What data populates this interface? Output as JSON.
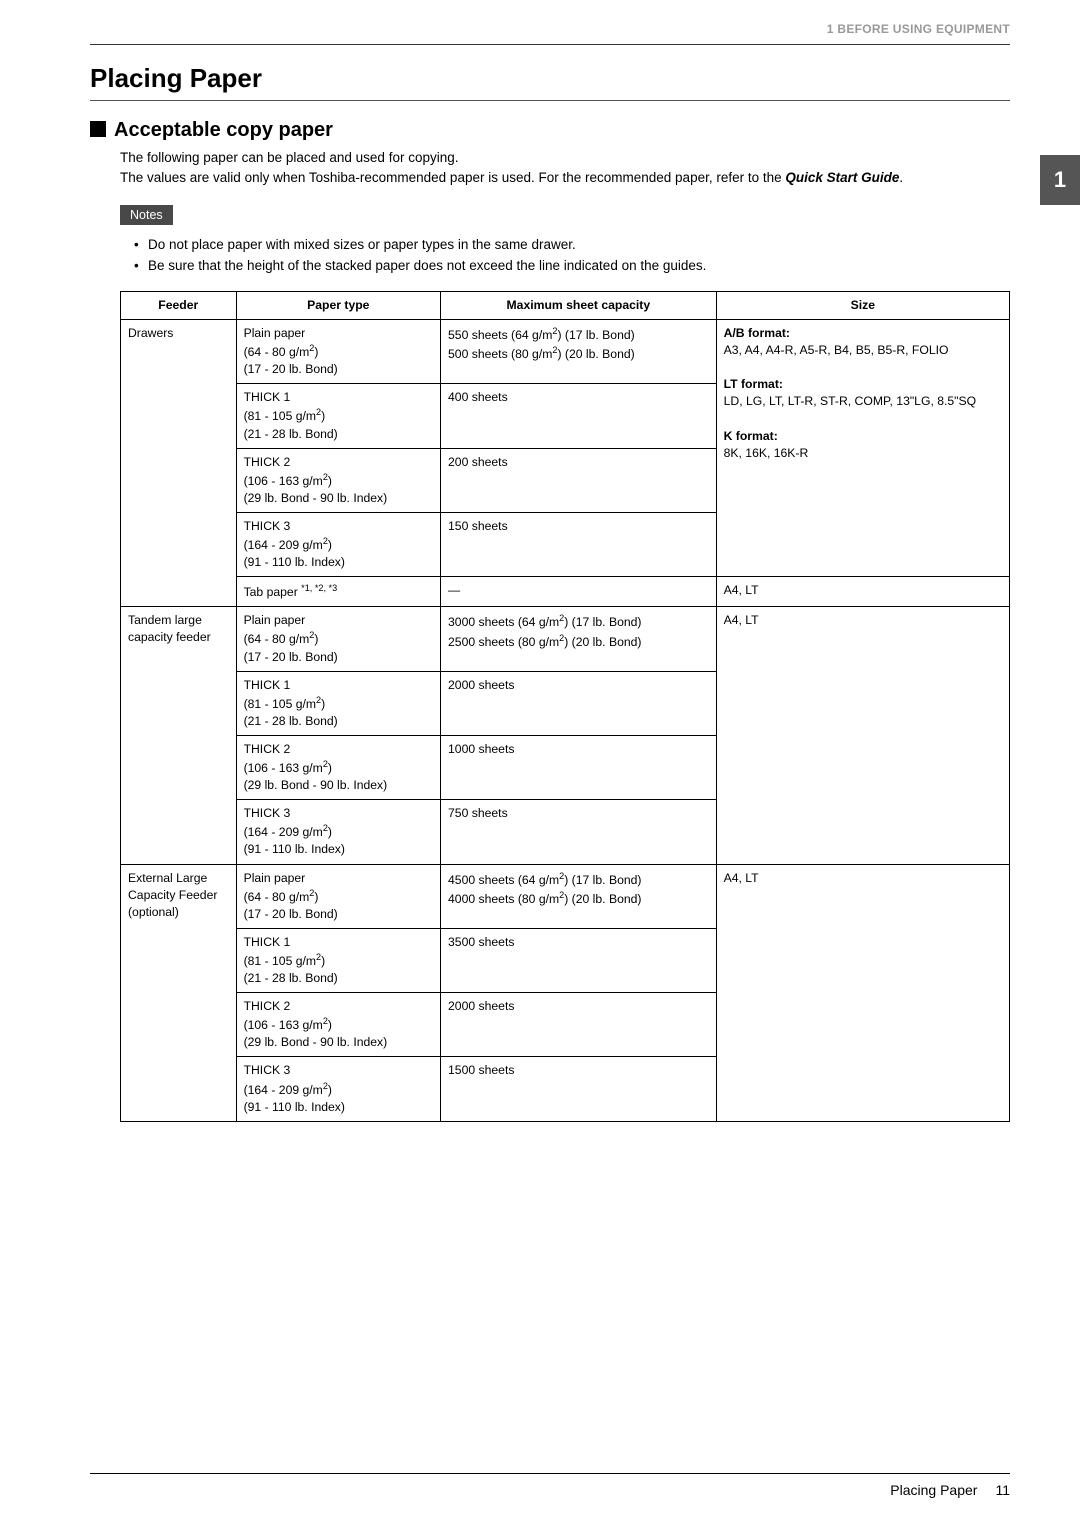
{
  "header": {
    "running_head": "1 BEFORE USING EQUIPMENT",
    "chapter_number": "1"
  },
  "title": "Placing Paper",
  "section": {
    "heading": "Acceptable copy paper",
    "intro1": "The following paper can be placed and used for copying.",
    "intro2_a": "The values are valid only when Toshiba-recommended paper is used. For the recommended paper, refer to the ",
    "intro2_b": "Quick Start Guide",
    "intro2_c": "."
  },
  "notes": {
    "label": "Notes",
    "items": [
      "Do not place paper with mixed sizes or paper types in the same drawer.",
      "Be sure that the height of the stacked paper does not exceed the line indicated on the guides."
    ]
  },
  "table": {
    "colors": {
      "border": "#000000",
      "header_bg": "#ffffff",
      "notes_badge_bg": "#484848",
      "chapter_tab_bg": "#555555"
    },
    "col_widths": [
      "13%",
      "23%",
      "31%",
      "33%"
    ],
    "columns": [
      "Feeder",
      "Paper type",
      "Maximum sheet capacity",
      "Size"
    ],
    "groups": [
      {
        "feeder": "Drawers",
        "size_blocks": [
          {
            "label": "A/B format:",
            "text": "A3, A4, A4-R, A5-R, B4, B5, B5-R, FOLIO",
            "rows": 1
          },
          {
            "spacer": true
          },
          {
            "label": "LT format:",
            "text": "LD, LG, LT, LT-R, ST-R, COMP, 13\"LG, 8.5\"SQ",
            "rows": 1
          },
          {
            "spacer": true
          },
          {
            "label": "K format:",
            "text": "8K, 16K, 16K-R",
            "rows": 1
          }
        ],
        "rows": [
          {
            "paper": "Plain paper\n(64 - 80 g/m²)\n(17 - 20 lb. Bond)",
            "capacity": "550 sheets (64 g/m²) (17 lb. Bond)\n500 sheets (80 g/m²) (20 lb. Bond)"
          },
          {
            "paper": "THICK 1\n(81 - 105 g/m²)\n(21 - 28 lb. Bond)",
            "capacity": "400 sheets"
          },
          {
            "paper": "THICK 2\n(106 - 163 g/m²)\n(29 lb. Bond - 90 lb. Index)",
            "capacity": "200 sheets"
          },
          {
            "paper": "THICK 3\n(164 - 209 g/m²)\n(91 - 110 lb. Index)",
            "capacity": "150 sheets"
          }
        ],
        "tab_row": {
          "paper": "Tab paper *1, *2, *3",
          "capacity": "—",
          "size": "A4, LT"
        }
      },
      {
        "feeder": "Tandem large capacity feeder",
        "size": "A4, LT",
        "rows": [
          {
            "paper": "Plain paper\n(64 - 80 g/m²)\n(17 - 20 lb. Bond)",
            "capacity": "3000 sheets (64 g/m²) (17 lb. Bond)\n2500 sheets (80 g/m²) (20 lb. Bond)"
          },
          {
            "paper": "THICK 1\n(81 - 105 g/m²)\n(21 - 28 lb. Bond)",
            "capacity": "2000 sheets"
          },
          {
            "paper": "THICK 2\n(106 - 163 g/m²)\n(29 lb. Bond - 90 lb. Index)",
            "capacity": "1000 sheets"
          },
          {
            "paper": "THICK 3\n(164 - 209 g/m²)\n(91 - 110 lb. Index)",
            "capacity": "750 sheets"
          }
        ]
      },
      {
        "feeder": "External Large Capacity Feeder (optional)",
        "size": "A4, LT",
        "rows": [
          {
            "paper": "Plain paper\n(64 - 80 g/m²)\n(17 - 20 lb. Bond)",
            "capacity": "4500 sheets (64 g/m²) (17 lb. Bond)\n4000 sheets (80 g/m²) (20 lb. Bond)"
          },
          {
            "paper": "THICK 1\n(81 - 105 g/m²)\n(21 - 28 lb. Bond)",
            "capacity": "3500 sheets"
          },
          {
            "paper": "THICK 2\n(106 - 163 g/m²)\n(29 lb. Bond - 90 lb. Index)",
            "capacity": "2000 sheets"
          },
          {
            "paper": "THICK 3\n(164 - 209 g/m²)\n(91 - 110 lb. Index)",
            "capacity": "1500 sheets"
          }
        ]
      }
    ]
  },
  "footer": {
    "title": "Placing Paper",
    "page": "11"
  }
}
